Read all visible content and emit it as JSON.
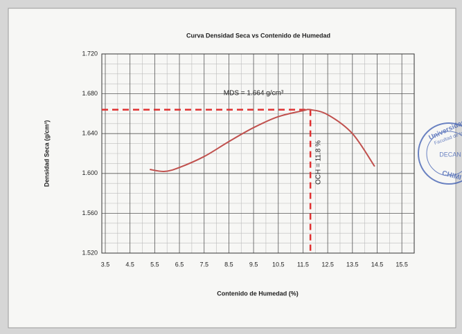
{
  "chart_data": {
    "type": "line",
    "title": "Curva Densidad Seca  vs Contenido de Humedad",
    "x_label": "Contenido de Humedad (%)",
    "y_label": "Densidad Seca  (g/cm³)",
    "x": [
      5.3,
      5.9,
      6.5,
      7.5,
      8.5,
      9.5,
      10.5,
      11.5,
      11.8,
      12.5,
      13.5,
      14.4
    ],
    "values": [
      1.604,
      1.602,
      1.606,
      1.617,
      1.632,
      1.646,
      1.657,
      1.663,
      1.664,
      1.659,
      1.64,
      1.607
    ],
    "color": "#c0504d",
    "xlim": [
      3.36,
      16
    ],
    "ylim": [
      1.52,
      1.72
    ],
    "xticks": [
      3.5,
      4.5,
      5.5,
      6.5,
      7.5,
      8.5,
      9.5,
      10.5,
      11.5,
      12.5,
      13.5,
      14.5,
      15.5
    ],
    "yticks": [
      {
        "value": 1.52,
        "label": "1.520"
      },
      {
        "value": 1.56,
        "label": "1.560"
      },
      {
        "value": 1.6,
        "label": "1.600"
      },
      {
        "value": 1.64,
        "label": "1.640"
      },
      {
        "value": 1.68,
        "label": "1.680"
      },
      {
        "value": 1.72,
        "label": "1.720"
      }
    ],
    "grid": true,
    "minor_grid": true,
    "reference_lines": {
      "x": 11.8,
      "y": 1.664,
      "color": "#e03030"
    },
    "annotations": [
      "MDS = 1.664 g/cm³",
      "OCH = 11.8 %"
    ],
    "stamp": [
      "Universidad S",
      "Facultad de In",
      "DECAN",
      "CHIMI"
    ]
  }
}
